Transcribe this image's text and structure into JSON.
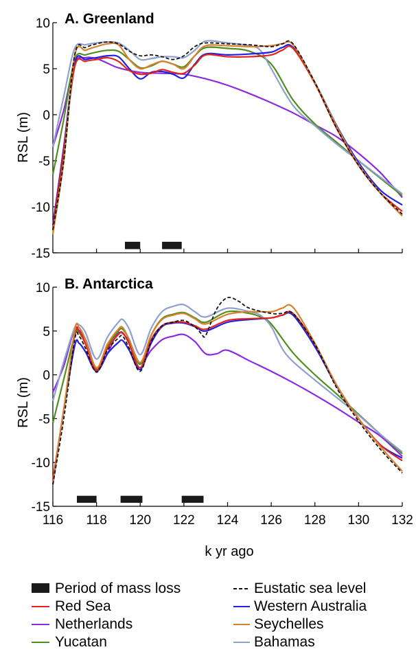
{
  "chart_data": [
    {
      "type": "line",
      "title": "A. Greenland",
      "xlabel": "",
      "ylabel": "RSL (m)",
      "xlim": [
        116,
        132
      ],
      "ylim": [
        -15,
        10
      ],
      "yticks": [
        "10",
        "5",
        "0",
        "-5",
        "-10",
        "-15"
      ],
      "yticks_values": [
        10,
        5,
        0,
        -5,
        -10,
        -15
      ],
      "mass_loss_periods": [
        [
          119.3,
          120.0
        ],
        [
          121.0,
          121.9
        ]
      ],
      "series": [
        {
          "key": "eustatic",
          "x": [
            116,
            116.5,
            117,
            117.5,
            118,
            118.5,
            119,
            119.5,
            120,
            120.5,
            121,
            121.5,
            122,
            122.5,
            123,
            124,
            125,
            126,
            126.5,
            127,
            128,
            129,
            130,
            131,
            132
          ],
          "y": [
            -12.5,
            -5,
            6.5,
            7.3,
            7.7,
            7.9,
            7.7,
            6.9,
            6.4,
            6.5,
            6.3,
            6,
            6.4,
            7.4,
            7.8,
            7.7,
            7.6,
            7.4,
            7.7,
            7.7,
            3.5,
            -1.5,
            -5.5,
            -8.5,
            -10.8
          ]
        },
        {
          "key": "red_sea",
          "x": [
            116,
            116.5,
            117,
            117.5,
            118,
            118.5,
            119,
            119.5,
            120,
            120.5,
            121,
            121.5,
            122,
            122.5,
            123,
            124,
            125,
            126,
            126.5,
            127,
            128,
            129,
            130,
            131,
            132
          ],
          "y": [
            -12.5,
            -4,
            5.2,
            5.8,
            6.0,
            6.2,
            5.8,
            4.8,
            4.4,
            4.5,
            4.9,
            4.6,
            4.5,
            5.4,
            6.5,
            6.3,
            6.3,
            6.5,
            7.0,
            7.2,
            3.4,
            -1.5,
            -5.5,
            -8.5,
            -10.5
          ]
        },
        {
          "key": "western_australia",
          "x": [
            116,
            116.5,
            117,
            117.5,
            118,
            118.5,
            119,
            119.5,
            120,
            120.5,
            121,
            121.5,
            122,
            122.5,
            123,
            124,
            125,
            126,
            126.5,
            127,
            128,
            129,
            130,
            131,
            132
          ],
          "y": [
            -12.0,
            -3.5,
            5.6,
            6.0,
            6.2,
            6.4,
            6.3,
            5.0,
            3.9,
            4.6,
            4.7,
            4.4,
            4.0,
            5.5,
            6.6,
            6.5,
            6.6,
            6.8,
            7.3,
            7.3,
            3.5,
            -1.2,
            -5.2,
            -8.2,
            -9.8
          ]
        },
        {
          "key": "netherlands",
          "x": [
            116,
            116.5,
            117,
            117.5,
            118,
            118.5,
            119,
            120,
            121,
            122,
            123,
            124,
            125,
            126,
            127,
            128,
            129,
            130,
            131,
            132
          ],
          "y": [
            -3.5,
            0.5,
            5.6,
            6.2,
            6.1,
            5.6,
            5.1,
            4.6,
            4.5,
            4.4,
            3.9,
            3.2,
            2.3,
            1.3,
            0.2,
            -1.1,
            -2.4,
            -4.2,
            -6.3,
            -9.0
          ]
        },
        {
          "key": "seychelles",
          "x": [
            116,
            116.5,
            117,
            117.5,
            118,
            118.5,
            119,
            119.5,
            120,
            120.5,
            121,
            121.5,
            122,
            122.5,
            123,
            124,
            125,
            126,
            126.5,
            127,
            128,
            129,
            130,
            131,
            132
          ],
          "y": [
            -13.0,
            -5,
            6.4,
            7.0,
            7.4,
            7.7,
            7.6,
            6.0,
            5.0,
            5.4,
            5.8,
            5.5,
            5.0,
            6.4,
            7.5,
            7.5,
            7.4,
            7.5,
            7.7,
            7.6,
            3.5,
            -1.3,
            -5.4,
            -8.5,
            -11.0
          ]
        },
        {
          "key": "yucatan",
          "x": [
            116,
            116.5,
            117,
            117.5,
            118,
            118.5,
            119,
            119.5,
            120,
            120.5,
            121,
            121.5,
            122,
            122.5,
            123,
            124,
            125,
            126,
            127,
            128,
            129,
            130,
            131,
            132
          ],
          "y": [
            -6.5,
            -0.5,
            6.0,
            6.5,
            6.8,
            7.0,
            6.9,
            6.0,
            5.1,
            5.3,
            5.8,
            5.5,
            5.2,
            6.4,
            7.3,
            7.2,
            6.9,
            5.5,
            1.6,
            -1.0,
            -3.0,
            -5.0,
            -6.9,
            -8.8
          ]
        },
        {
          "key": "bahamas",
          "x": [
            116,
            116.5,
            117,
            117.5,
            118,
            118.5,
            119,
            119.5,
            120,
            120.5,
            121,
            121.5,
            122,
            122.5,
            123,
            124,
            125,
            125.5,
            126,
            127,
            128,
            129,
            130,
            131,
            132
          ],
          "y": [
            -3.5,
            2,
            7.2,
            7.6,
            7.8,
            7.9,
            7.8,
            7.0,
            6.0,
            6.1,
            6.3,
            6.3,
            6.2,
            7.0,
            8.0,
            7.8,
            7.5,
            7.0,
            5.0,
            1.0,
            -1.2,
            -3.2,
            -5.0,
            -6.8,
            -8.6
          ]
        }
      ]
    },
    {
      "type": "line",
      "title": "B. Antarctica",
      "xlabel": "k yr ago",
      "ylabel": "RSL (m)",
      "xlim": [
        116,
        132
      ],
      "ylim": [
        -15,
        10
      ],
      "xticks": [
        "116",
        "118",
        "120",
        "122",
        "124",
        "126",
        "128",
        "130",
        "132"
      ],
      "xticks_values": [
        116,
        118,
        120,
        122,
        124,
        126,
        128,
        130,
        132
      ],
      "yticks": [
        "10",
        "5",
        "0",
        "-5",
        "-10",
        "-15"
      ],
      "yticks_values": [
        10,
        5,
        0,
        -5,
        -10,
        -15
      ],
      "mass_loss_periods": [
        [
          117.1,
          118.0
        ],
        [
          119.1,
          120.1
        ],
        [
          121.9,
          122.9
        ]
      ],
      "series": [
        {
          "key": "eustatic",
          "x": [
            116,
            116.5,
            117,
            117.2,
            117.5,
            118,
            118.5,
            119,
            119.2,
            119.5,
            120,
            120.5,
            121,
            121.5,
            122,
            122.5,
            122.8,
            123,
            123.5,
            124,
            124.5,
            125,
            126,
            126.5,
            127,
            128,
            129,
            130,
            131,
            132
          ],
          "y": [
            -12.5,
            -5,
            4.0,
            4.4,
            3.0,
            0.3,
            2.8,
            4.2,
            4.4,
            3.0,
            0.4,
            3.8,
            5.6,
            6.0,
            6.2,
            5.5,
            4.7,
            4.5,
            7.5,
            8.8,
            8.4,
            7.6,
            7.0,
            7.0,
            7.0,
            3.5,
            -1.5,
            -5.3,
            -8.5,
            -11.2
          ]
        },
        {
          "key": "red_sea",
          "x": [
            116,
            116.5,
            117,
            117.2,
            117.5,
            118,
            118.5,
            119,
            119.2,
            119.5,
            120,
            120.5,
            121,
            121.5,
            122,
            122.5,
            123,
            124,
            125,
            126,
            126.5,
            127,
            128,
            129,
            130,
            131,
            132
          ],
          "y": [
            -12.0,
            -4,
            4.6,
            5.0,
            3.5,
            0.5,
            3.0,
            4.6,
            4.8,
            3.5,
            0.8,
            4.0,
            5.6,
            6.0,
            6.0,
            5.6,
            5.2,
            6.2,
            6.4,
            6.5,
            6.8,
            7.0,
            3.5,
            -1.2,
            -5.0,
            -8.0,
            -9.8
          ]
        },
        {
          "key": "western_australia",
          "x": [
            116,
            116.5,
            117,
            117.2,
            117.5,
            118,
            118.5,
            119,
            119.2,
            119.5,
            120,
            120.5,
            121,
            121.5,
            122,
            122.5,
            123,
            124,
            125,
            126,
            126.5,
            127,
            128,
            129,
            130,
            131,
            132
          ],
          "y": [
            -12.5,
            -4,
            3.3,
            3.6,
            2.6,
            0.4,
            2.4,
            3.7,
            3.9,
            2.8,
            0.6,
            3.6,
            5.5,
            5.9,
            5.9,
            5.5,
            5.0,
            6.0,
            6.3,
            6.5,
            6.8,
            6.8,
            3.2,
            -1.3,
            -5.0,
            -8.0,
            -9.5
          ]
        },
        {
          "key": "netherlands",
          "x": [
            116,
            116.5,
            117,
            117.5,
            118,
            118.5,
            119,
            119.5,
            120,
            120.5,
            121,
            121.5,
            122,
            122.5,
            123,
            123.5,
            124,
            125,
            126,
            127,
            128,
            129,
            130,
            131,
            132
          ],
          "y": [
            -2.0,
            1.0,
            5.0,
            4.0,
            0.6,
            2.4,
            4.8,
            3.8,
            1.3,
            2.8,
            4.0,
            4.4,
            4.6,
            3.8,
            2.4,
            2.4,
            2.8,
            1.6,
            0.4,
            -0.9,
            -2.3,
            -3.8,
            -5.4,
            -7.0,
            -9.3
          ]
        },
        {
          "key": "seychelles",
          "x": [
            116,
            116.5,
            117,
            117.2,
            117.5,
            118,
            118.5,
            119,
            119.2,
            119.5,
            120,
            120.5,
            121,
            121.5,
            122,
            122.5,
            123,
            124,
            125,
            126,
            126.5,
            127,
            128,
            129,
            130,
            131,
            132
          ],
          "y": [
            -12.5,
            -4,
            5.0,
            5.4,
            4.0,
            0.8,
            3.5,
            5.2,
            5.4,
            4.0,
            1.4,
            4.5,
            6.3,
            6.8,
            7.0,
            6.4,
            5.8,
            6.9,
            7.2,
            7.2,
            7.6,
            7.7,
            3.6,
            -1.2,
            -5.0,
            -8.2,
            -11.0
          ]
        },
        {
          "key": "yucatan",
          "x": [
            116,
            116.5,
            117,
            117.2,
            117.5,
            118,
            118.5,
            119,
            119.2,
            119.5,
            120,
            120.5,
            121,
            121.5,
            122,
            122.5,
            123,
            124,
            125,
            125.5,
            126,
            127,
            128,
            129,
            130,
            131,
            132
          ],
          "y": [
            -5.5,
            -0.5,
            4.5,
            4.8,
            3.5,
            0.6,
            3.2,
            5.0,
            5.2,
            4.0,
            1.2,
            4.5,
            6.4,
            6.9,
            7.1,
            6.5,
            6.0,
            7.2,
            7.0,
            6.6,
            5.8,
            2.5,
            0.0,
            -2.2,
            -4.5,
            -6.8,
            -9.0
          ]
        },
        {
          "key": "bahamas",
          "x": [
            116,
            116.5,
            117,
            117.2,
            117.5,
            118,
            118.5,
            119,
            119.2,
            119.5,
            120,
            120.5,
            121,
            121.5,
            122,
            122.5,
            123,
            124,
            125,
            125.5,
            126,
            126.5,
            127,
            128,
            129,
            130,
            131,
            132
          ],
          "y": [
            -3.0,
            1.5,
            5.4,
            5.7,
            4.8,
            1.8,
            4.3,
            6.0,
            6.3,
            5.2,
            2.3,
            5.3,
            7.2,
            7.8,
            8.0,
            7.2,
            6.6,
            7.6,
            7.2,
            6.8,
            5.5,
            3.0,
            1.5,
            -0.6,
            -2.6,
            -4.6,
            -6.8,
            -8.8
          ]
        }
      ]
    }
  ],
  "legend": {
    "mass_loss": "Period of mass loss",
    "eustatic": "Eustatic sea level",
    "red_sea": "Red Sea",
    "western_australia": "Western Australia",
    "netherlands": "Netherlands",
    "seychelles": "Seychelles",
    "yucatan": "Yucatan",
    "bahamas": "Bahamas"
  },
  "colors": {
    "eustatic": "#111111",
    "red_sea": "#e2231a",
    "western_australia": "#1f1fe8",
    "netherlands": "#8a2be2",
    "seychelles": "#d7812f",
    "yucatan": "#4f8f1e",
    "bahamas": "#8fa0cf",
    "mass_loss": "#1a1a1a"
  }
}
